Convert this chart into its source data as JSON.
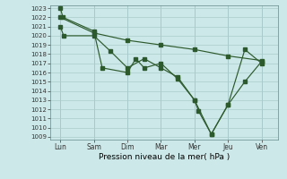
{
  "background_color": "#cce8e8",
  "grid_color": "#aacccc",
  "line_color": "#2d5a2d",
  "xlabel": "Pression niveau de la mer( hPa )",
  "x_labels": [
    "Lun",
    "Sam",
    "Dim",
    "Mar",
    "Mer",
    "Jeu",
    "Ven"
  ],
  "x_positions": [
    0,
    1,
    2,
    3,
    4,
    5,
    6
  ],
  "ylim_min": 1009,
  "ylim_max": 1023,
  "yticks": [
    1009,
    1010,
    1011,
    1012,
    1013,
    1014,
    1015,
    1016,
    1017,
    1018,
    1019,
    1020,
    1021,
    1022,
    1023
  ],
  "line1_x": [
    0,
    0.08,
    1.0,
    1.25,
    2.0,
    2.25,
    2.5,
    3.0,
    3.5,
    4.0,
    4.12,
    4.5,
    5.0,
    5.5,
    6.0
  ],
  "line1_y": [
    1023,
    1022,
    1020.5,
    1016.5,
    1016.0,
    1017.5,
    1016.5,
    1017.0,
    1015.3,
    1013.0,
    1011.8,
    1009.3,
    1012.5,
    1018.5,
    1017.0
  ],
  "line2_x": [
    0,
    0.1,
    1.0,
    1.5,
    2.0,
    2.5,
    3.0,
    3.5,
    4.0,
    4.5,
    5.0,
    5.5,
    6.0
  ],
  "line2_y": [
    1021.0,
    1020.0,
    1020.0,
    1018.3,
    1016.5,
    1017.5,
    1016.5,
    1015.5,
    1013.0,
    1009.3,
    1012.5,
    1015.0,
    1017.2
  ],
  "line3_x": [
    0,
    1,
    2,
    3,
    4,
    5,
    6
  ],
  "line3_y": [
    1022.0,
    1020.3,
    1019.5,
    1019.0,
    1018.5,
    1017.8,
    1017.3
  ]
}
